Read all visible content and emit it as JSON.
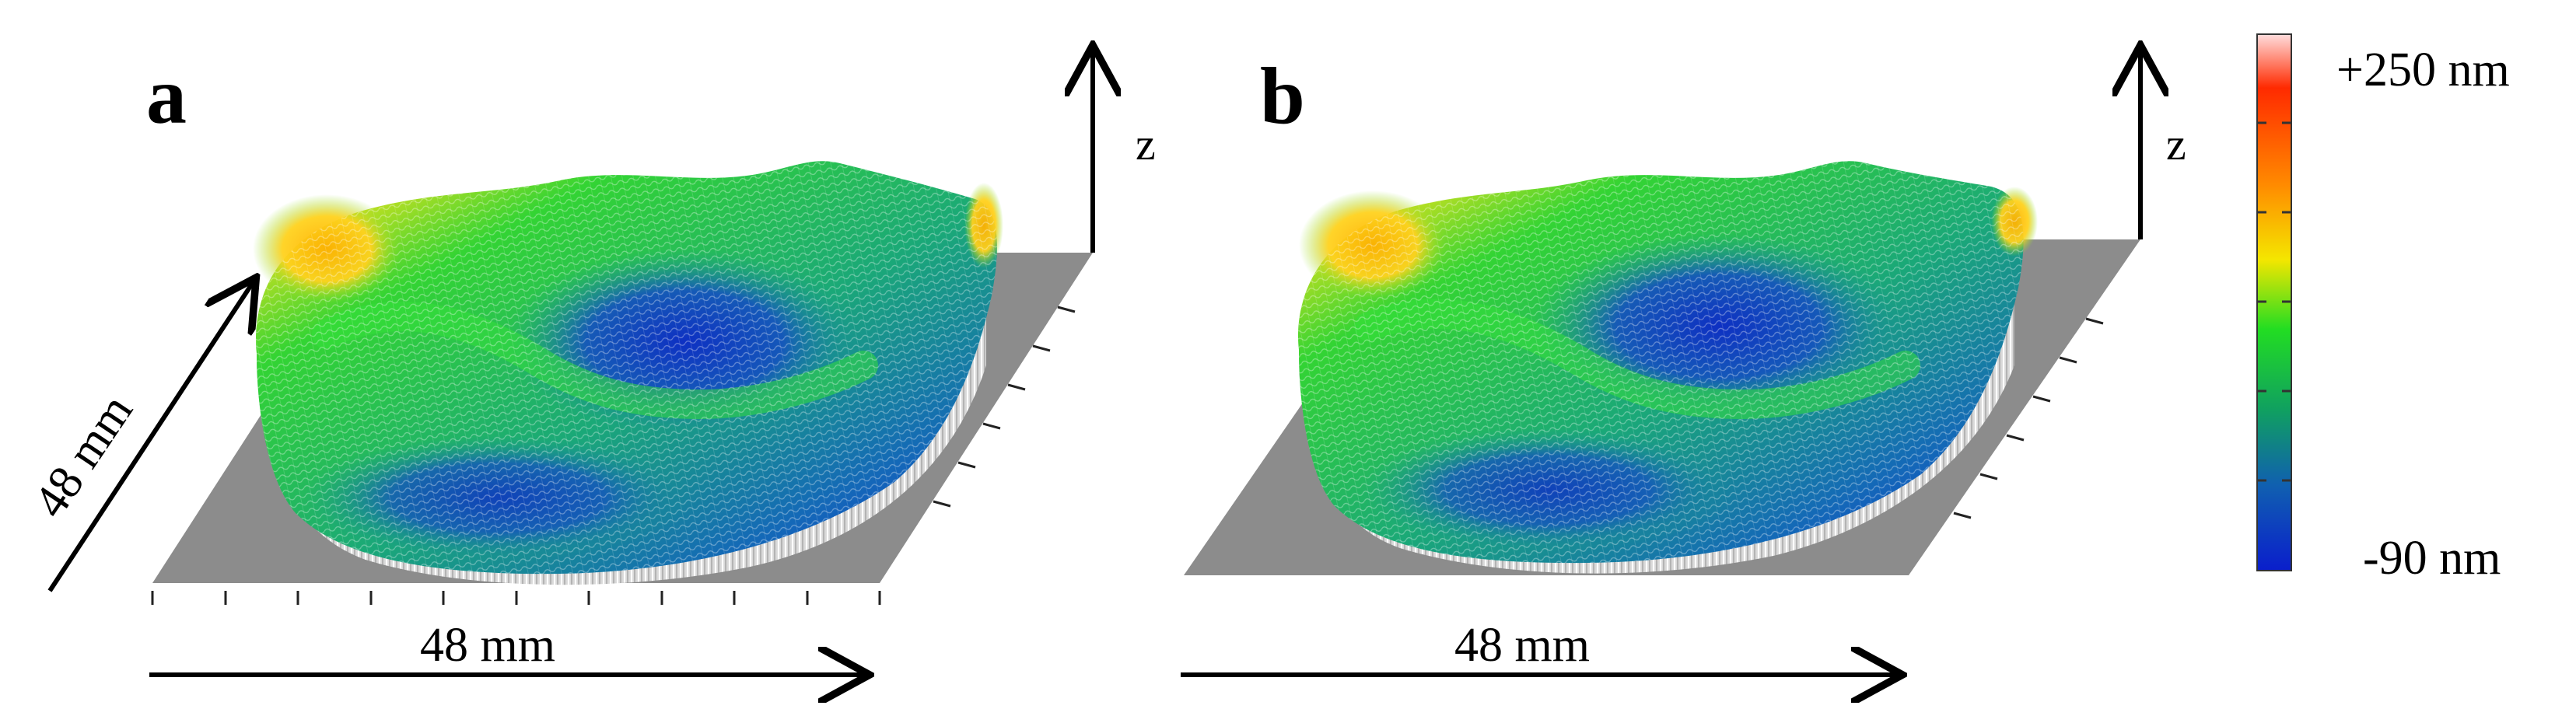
{
  "panels": [
    {
      "id": "a",
      "label": "a",
      "axis_z_label": "z",
      "x_extent_label": "48 mm",
      "y_extent_label": "48 mm"
    },
    {
      "id": "b",
      "label": "b",
      "axis_z_label": "z",
      "x_extent_label": "48 mm"
    }
  ],
  "colorbar": {
    "max_label": "+250 nm",
    "min_label": "-90 nm",
    "colors": [
      "#ff2200",
      "#ff8800",
      "#ffee00",
      "#22dd22",
      "#119966",
      "#1133dd"
    ]
  }
}
